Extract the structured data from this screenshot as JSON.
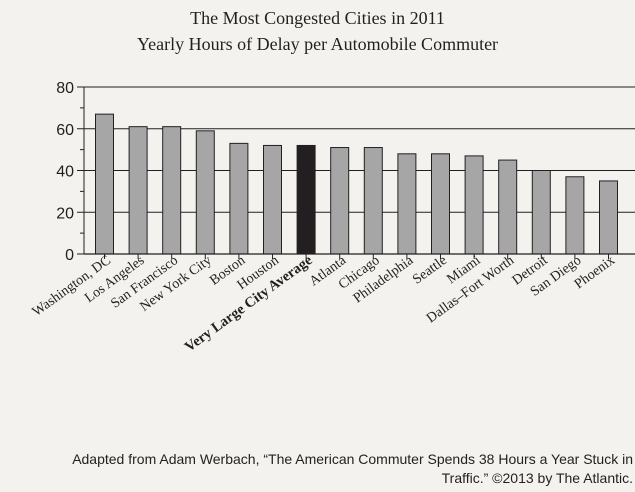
{
  "chart_data": {
    "type": "bar",
    "title": "The Most Congested Cities in 2011",
    "subtitle": "Yearly Hours of Delay per Automobile Commuter",
    "categories": [
      "Washington, DC",
      "Los Angeles",
      "San Francisco",
      "New York City",
      "Boston",
      "Houston",
      "Very Large City Average",
      "Atlanta",
      "Chicago",
      "Philadelphia",
      "Seattle",
      "Miami",
      "Dallas–Fort Worth",
      "Detroit",
      "San Diego",
      "Phoenix"
    ],
    "values": [
      67,
      61,
      61,
      59,
      53,
      52,
      52,
      51,
      51,
      48,
      48,
      47,
      45,
      40,
      37,
      35
    ],
    "highlight_category": "Very Large City Average",
    "ylim": [
      0,
      80
    ],
    "yticks": [
      0,
      20,
      40,
      60,
      80
    ],
    "grid": true,
    "xlabel": "",
    "ylabel": "",
    "colors": {
      "bar": "#a6a6a6",
      "highlight": "#231f20",
      "grid": "#231f20",
      "background": "#f3f2ee"
    }
  },
  "source": {
    "line1": "Adapted from Adam Werbach, “The American Commuter Spends 38 Hours a Year Stuck in",
    "line2": "Traffic.” ©2013 by The Atlantic."
  }
}
